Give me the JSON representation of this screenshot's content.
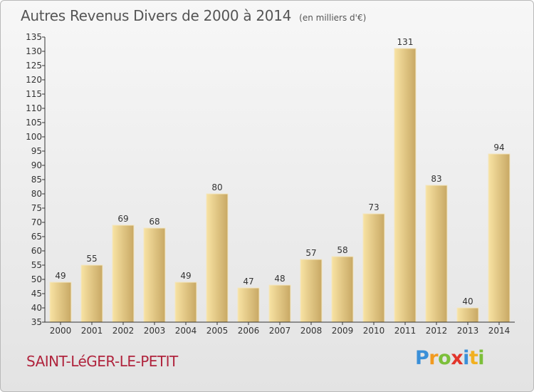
{
  "title": "Autres Revenus Divers de 2000 à 2014",
  "subtitle": "(en milliers d'€)",
  "location": "SAINT-LéGER-LE-PETIT",
  "logo": {
    "text": "Proxiti",
    "letters": [
      {
        "ch": "P",
        "color": "#3a8fd8"
      },
      {
        "ch": "r",
        "color": "#f29a1f"
      },
      {
        "ch": "o",
        "color": "#7cbf3a"
      },
      {
        "ch": "x",
        "color": "#e2352b"
      },
      {
        "ch": "i",
        "color": "#3a8fd8"
      },
      {
        "ch": "t",
        "color": "#f2b01f"
      },
      {
        "ch": "i",
        "color": "#7cbf3a"
      }
    ]
  },
  "chart_data": {
    "type": "bar",
    "categories": [
      "2000",
      "2001",
      "2002",
      "2003",
      "2004",
      "2005",
      "2006",
      "2007",
      "2008",
      "2009",
      "2010",
      "2011",
      "2012",
      "2013",
      "2014"
    ],
    "values": [
      49,
      55,
      69,
      68,
      49,
      80,
      47,
      48,
      57,
      58,
      73,
      131,
      83,
      40,
      94
    ],
    "ylim": [
      35,
      135
    ],
    "yticks": [
      35,
      40,
      45,
      50,
      55,
      60,
      65,
      70,
      75,
      80,
      85,
      90,
      95,
      100,
      105,
      110,
      115,
      120,
      125,
      130,
      135
    ],
    "grid": false,
    "data_labels": true,
    "colors": {
      "bar_light": "#f8e3a3",
      "bar_dark": "#c8a864",
      "axis": "#333333",
      "text": "#333333"
    }
  }
}
